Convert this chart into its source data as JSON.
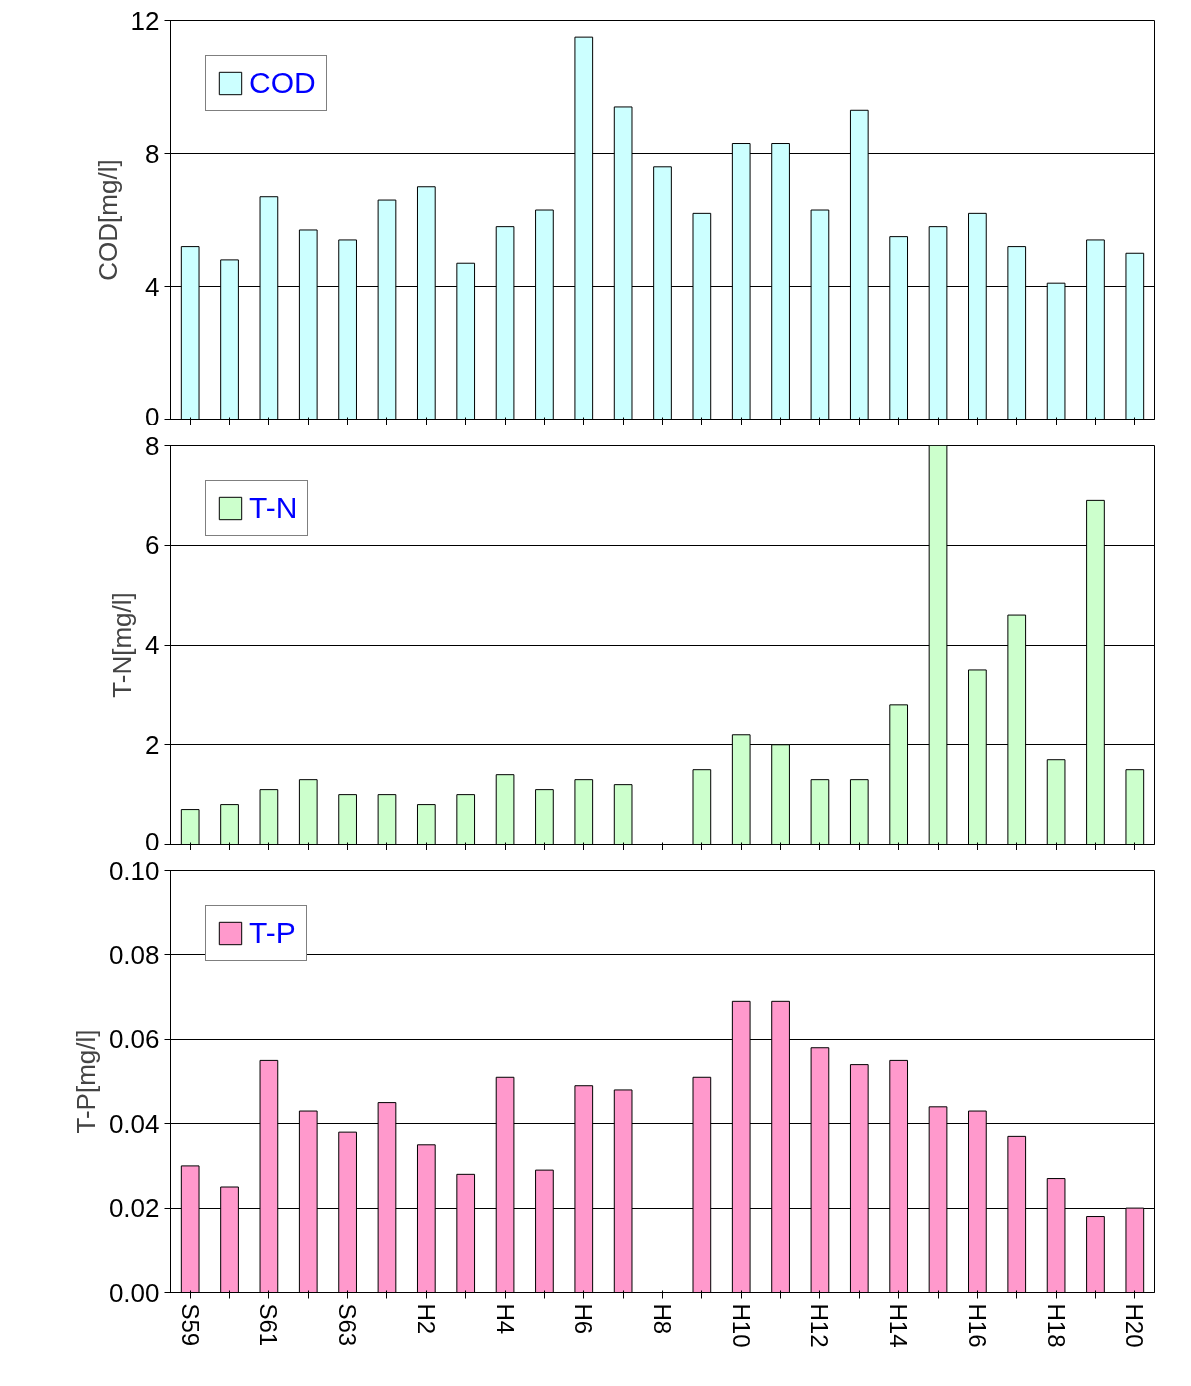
{
  "chart_data": [
    {
      "type": "bar",
      "ylabel": "COD[mg/l]",
      "categories": [
        null,
        null,
        null,
        null,
        null,
        null,
        null,
        null,
        null,
        null,
        null,
        null,
        null,
        null,
        null,
        null,
        null,
        null,
        null,
        null,
        null,
        null,
        null,
        null,
        null
      ],
      "series": [
        {
          "name": "COD",
          "color": "#ccffff",
          "values": [
            5.2,
            4.8,
            6.7,
            5.7,
            5.4,
            6.6,
            7.0,
            4.7,
            5.8,
            6.3,
            11.5,
            9.4,
            7.6,
            6.2,
            8.3,
            8.3,
            6.3,
            9.3,
            5.5,
            5.8,
            6.2,
            5.2,
            4.1,
            5.4,
            5.0
          ]
        }
      ],
      "ylim": [
        0,
        12
      ],
      "yticks": [
        0,
        4,
        8,
        12
      ],
      "grid": "y",
      "legend": "top left",
      "tick_labels": "y"
    },
    {
      "type": "bar",
      "ylabel": "T-N[mg/l]",
      "categories": [
        null,
        null,
        null,
        null,
        null,
        null,
        null,
        null,
        null,
        null,
        null,
        null,
        null,
        null,
        null,
        null,
        null,
        null,
        null,
        null,
        null,
        null,
        null,
        null,
        null
      ],
      "series": [
        {
          "name": "T-N",
          "color": "#ccffcc",
          "values": [
            0.7,
            0.8,
            1.1,
            1.3,
            1.0,
            1.0,
            0.8,
            1.0,
            1.4,
            1.1,
            1.3,
            1.2,
            null,
            1.5,
            2.2,
            2.0,
            1.3,
            1.3,
            2.8,
            8.0,
            3.5,
            4.6,
            1.7,
            6.9,
            1.5
          ]
        }
      ],
      "ylim": [
        0,
        8
      ],
      "yticks": [
        0,
        2,
        4,
        6,
        8
      ],
      "grid": "y",
      "legend": "top left",
      "tick_labels": "y"
    },
    {
      "type": "bar",
      "ylabel": "T-P[mg/l]",
      "categories": [
        "S59",
        null,
        "S61",
        null,
        "S63",
        null,
        "H2",
        null,
        "H4",
        null,
        "H6",
        null,
        "H8",
        null,
        "H10",
        null,
        "H12",
        null,
        "H14",
        null,
        "H16",
        null,
        "H18",
        null,
        "H20"
      ],
      "series": [
        {
          "name": "T-P",
          "color": "#ff99cc",
          "values": [
            0.03,
            0.025,
            0.055,
            0.043,
            0.038,
            0.045,
            0.035,
            0.028,
            0.051,
            0.029,
            0.049,
            0.048,
            null,
            0.051,
            0.069,
            0.069,
            0.058,
            0.054,
            0.055,
            0.044,
            0.043,
            0.037,
            0.027,
            0.018,
            0.02
          ]
        }
      ],
      "ylim": [
        0,
        0.1
      ],
      "yticks": [
        {
          "value": 0,
          "label": "0.00"
        },
        {
          "value": 0.02,
          "label": "0.02"
        },
        {
          "value": 0.04,
          "label": "0.04"
        },
        {
          "value": 0.06,
          "label": "0.06"
        },
        {
          "value": 0.08,
          "label": "0.08"
        },
        {
          "value": 0.1,
          "label": "0.10"
        }
      ],
      "grid": "y",
      "legend": "top left"
    }
  ]
}
